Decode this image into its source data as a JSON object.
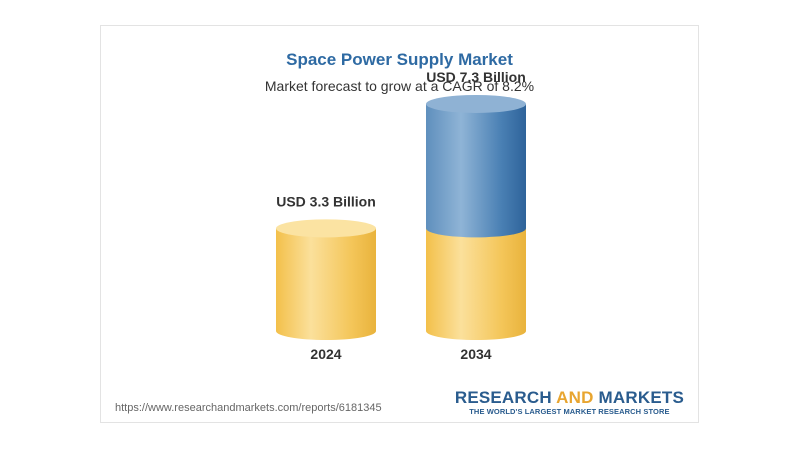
{
  "page": {
    "title": "Space Power Supply Market",
    "subtitle": "Market forecast to grow at a CAGR of 8.2%",
    "source_url": "https://www.researchandmarkets.com/reports/6181345"
  },
  "brand": {
    "name_part1": "RESEARCH",
    "name_part2": "AND",
    "name_part3": "MARKETS",
    "tagline": "THE WORLD'S LARGEST MARKET RESEARCH STORE",
    "primary_color": "#2a5c8e",
    "accent_color": "#e8a530"
  },
  "chart_data": {
    "type": "bar",
    "title": "Space Power Supply Market",
    "subtitle": "Market forecast to grow at a CAGR of 8.2%",
    "categories": [
      "2024",
      "2034"
    ],
    "values": [
      3.3,
      7.3
    ],
    "unit": "USD Billion",
    "value_labels": [
      "USD 3.3 Billion",
      "USD 7.3 Billion"
    ],
    "colors": {
      "base": "#f5c040",
      "growth": "#3d76ad"
    },
    "grid": false,
    "legend": "none"
  }
}
